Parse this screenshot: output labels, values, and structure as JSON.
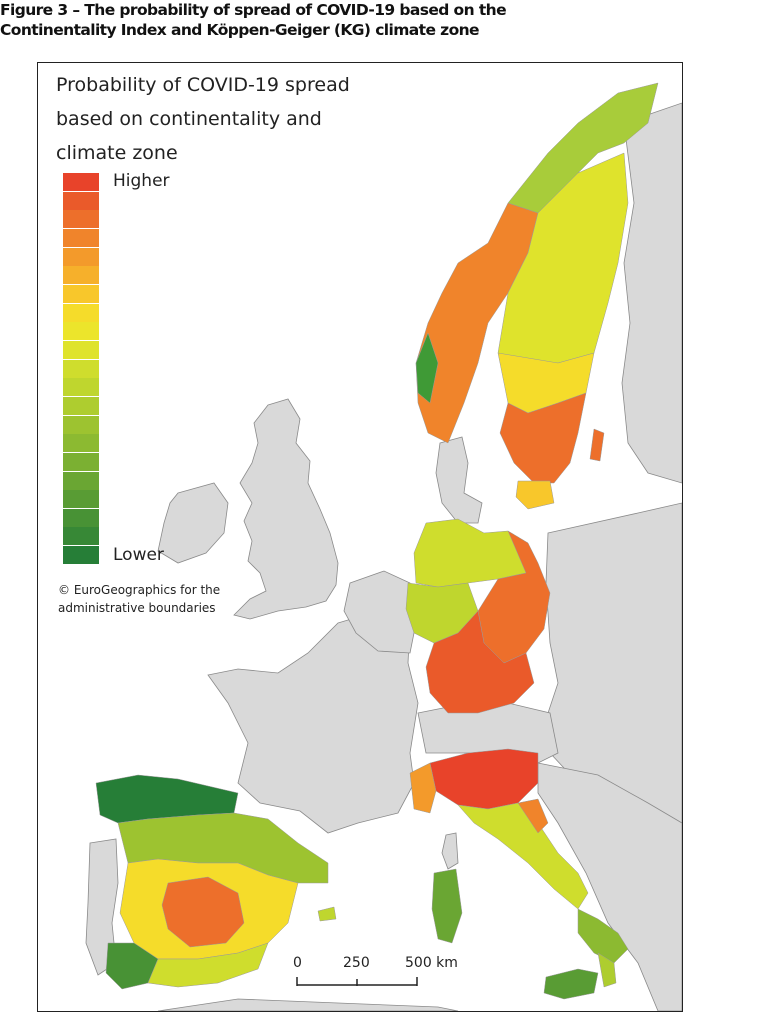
{
  "figure": {
    "title_line1": "Figure 3 – The probability of spread of COVID-19 based on the",
    "title_line2": "Continentality Index and Köppen-Geiger (KG) climate zone"
  },
  "legend": {
    "title_line1": "Probability of COVID-19 spread",
    "title_line2": "based on continentality and",
    "title_line3": "climate zone",
    "higher_label": "Higher",
    "lower_label": "Lower",
    "ramp_colors": [
      "#e8432a",
      "#ea5a2a",
      "#ed6f2b",
      "#f0842b",
      "#f39a2b",
      "#f6b02b",
      "#f8c72b",
      "#f5dc2a",
      "#ece52b",
      "#dfe32c",
      "#cfdd2d",
      "#bfd62e",
      "#aecd2f",
      "#9dc330",
      "#8cba31",
      "#7bb032",
      "#6aa633",
      "#599c34",
      "#489235",
      "#378836",
      "#267e37"
    ]
  },
  "attribution": {
    "line1": "© EuroGeographics for the",
    "line2": "administrative boundaries"
  },
  "scalebar": {
    "labels": [
      "0",
      "250",
      "500 km"
    ]
  },
  "colors": {
    "background_land": "#d9d9d9",
    "sea": "#ffffff",
    "boundary": "#8a8a8a",
    "high": "#e8432a",
    "low": "#267e37"
  }
}
